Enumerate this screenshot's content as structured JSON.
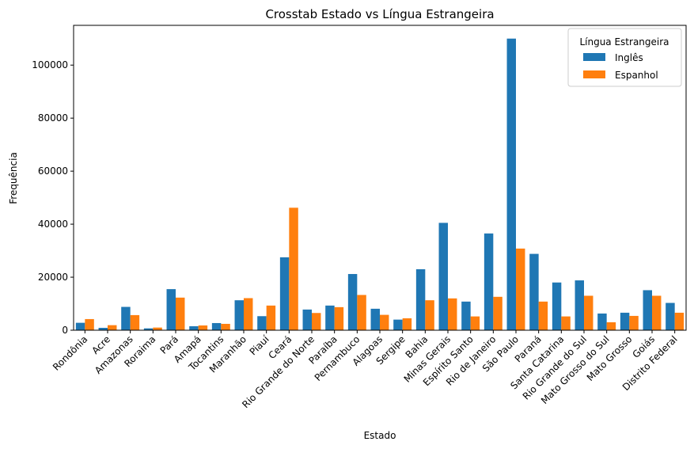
{
  "chart_data": {
    "type": "bar",
    "title": "Crosstab Estado vs Língua Estrangeira",
    "xlabel": "Estado",
    "ylabel": "Frequência",
    "ylim": [
      0,
      115000
    ],
    "yticks": [
      0,
      20000,
      40000,
      60000,
      80000,
      100000
    ],
    "legend_title": "Língua Estrangeira",
    "legend_position": "top-right",
    "grid": false,
    "categories": [
      "Rondônia",
      "Acre",
      "Amazonas",
      "Roraima",
      "Pará",
      "Amapá",
      "Tocantins",
      "Maranhão",
      "Piauí",
      "Ceará",
      "Rio Grande do Norte",
      "Paraíba",
      "Pernambuco",
      "Alagoas",
      "Sergipe",
      "Bahia",
      "Minas Gerais",
      "Espírito Santo",
      "Rio de Janeiro",
      "São Paulo",
      "Paraná",
      "Santa Catarina",
      "Rio Grande do Sul",
      "Mato Grosso do Sul",
      "Mato Grosso",
      "Goiás",
      "Distrito Federal"
    ],
    "series": [
      {
        "name": "Inglês",
        "color": "#1f77b4",
        "values": [
          2800,
          900,
          8800,
          700,
          15500,
          1500,
          2700,
          11300,
          5300,
          27500,
          7800,
          9300,
          21200,
          8100,
          4000,
          23000,
          40500,
          10800,
          36500,
          110000,
          28800,
          18000,
          18800,
          6300,
          6600,
          15100,
          10300
        ]
      },
      {
        "name": "Espanhol",
        "color": "#ff7f0e",
        "values": [
          4200,
          1900,
          5700,
          1000,
          12300,
          1800,
          2400,
          12100,
          9300,
          46200,
          6500,
          8700,
          13300,
          5800,
          4500,
          11300,
          12000,
          5200,
          12600,
          30800,
          10800,
          5200,
          13000,
          3000,
          5400,
          13000,
          6600
        ]
      }
    ]
  }
}
